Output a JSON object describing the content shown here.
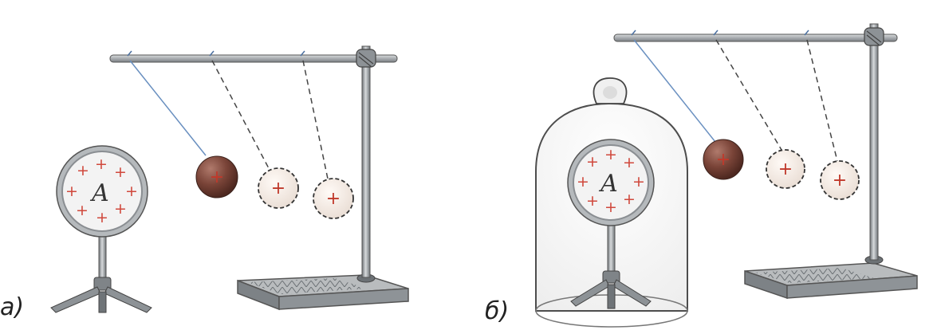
{
  "panels": [
    {
      "id": "a",
      "label": "а)",
      "body_letter": "A",
      "under_bell": false,
      "ball_positions": 3
    },
    {
      "id": "b",
      "label": "б)",
      "body_letter": "A",
      "under_bell": true,
      "ball_positions": 3
    }
  ],
  "charge_symbol": "+",
  "colors": {
    "charge": "#d0483c",
    "ball_real": "#7a4438",
    "ball_ghost": "#f4ece6",
    "metal": "#9ea3a7",
    "thread": "#6a90c0",
    "bell": "#f7f7f7"
  }
}
